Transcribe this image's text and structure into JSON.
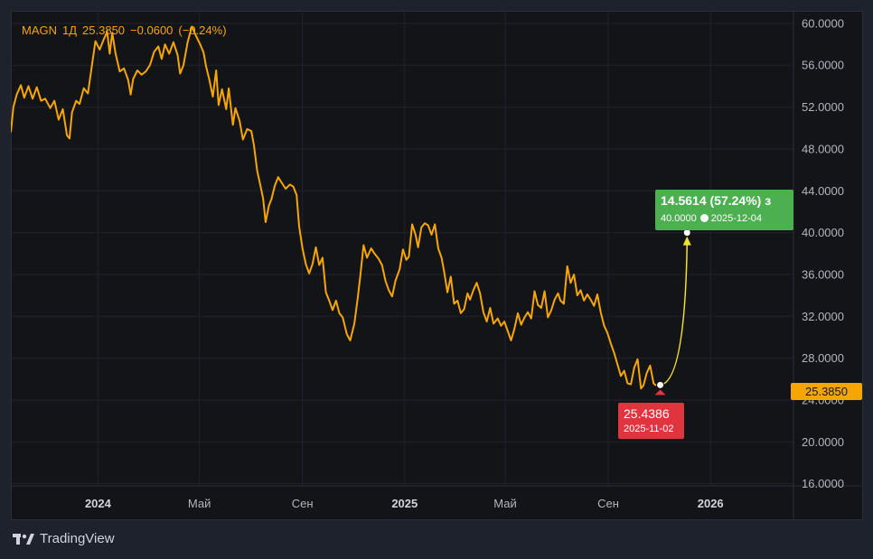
{
  "header": {
    "symbol": "MAGN",
    "interval": "1Д",
    "last": "25.3850",
    "change": "−0.0600",
    "change_pct": "(−0.24%)"
  },
  "price_tag": "25.3850",
  "projection": {
    "gain_label": "14.5614 (57.24%) з",
    "target_label": "40.0000",
    "target_date_label": "2025-12-04",
    "start_label": "25.4386",
    "start_date_label": "2025-11-02"
  },
  "branding": {
    "name": "TradingView"
  },
  "colors": {
    "line": "#f7a600",
    "projection": "#f5e130",
    "gain": "#4caf50",
    "loss": "#e0353f",
    "grid": "#1f232c",
    "axis_text": "#b2b5be",
    "background": "#131418"
  },
  "chart_data": {
    "type": "line",
    "title": "",
    "xlabel": "",
    "ylabel": "",
    "x_ticks": [
      {
        "label": "2024",
        "x": "2024-01-01",
        "bold": true
      },
      {
        "label": "Май",
        "x": "2024-05-01",
        "bold": false
      },
      {
        "label": "Сен",
        "x": "2024-09-01",
        "bold": false
      },
      {
        "label": "2025",
        "x": "2025-01-01",
        "bold": true
      },
      {
        "label": "Май",
        "x": "2025-05-01",
        "bold": false
      },
      {
        "label": "Сен",
        "x": "2025-09-01",
        "bold": false
      },
      {
        "label": "2026",
        "x": "2026-01-01",
        "bold": true
      }
    ],
    "y_ticks": [
      "16.0000",
      "20.0000",
      "24.0000",
      "28.0000",
      "32.0000",
      "36.0000",
      "40.0000",
      "44.0000",
      "48.0000",
      "52.0000",
      "56.0000",
      "60.0000"
    ],
    "ylim": [
      15.8,
      61.2
    ],
    "xlim": [
      "2023-09-19",
      "2026-04-10"
    ],
    "grid": true,
    "series": [
      {
        "color": "#f7a600",
        "points": [
          [
            "2023-09-19",
            49.6
          ],
          [
            "2023-09-22",
            52.0
          ],
          [
            "2023-09-26",
            53.2
          ],
          [
            "2023-10-01",
            54.1
          ],
          [
            "2023-10-05",
            52.9
          ],
          [
            "2023-10-10",
            54.0
          ],
          [
            "2023-10-15",
            52.8
          ],
          [
            "2023-10-20",
            53.9
          ],
          [
            "2023-10-25",
            52.6
          ],
          [
            "2023-10-30",
            52.8
          ],
          [
            "2023-11-05",
            51.9
          ],
          [
            "2023-11-10",
            52.6
          ],
          [
            "2023-11-15",
            50.8
          ],
          [
            "2023-11-20",
            51.8
          ],
          [
            "2023-11-25",
            49.3
          ],
          [
            "2023-11-28",
            49.0
          ],
          [
            "2023-12-01",
            51.5
          ],
          [
            "2023-12-06",
            52.6
          ],
          [
            "2023-12-10",
            52.3
          ],
          [
            "2023-12-15",
            53.8
          ],
          [
            "2023-12-20",
            53.3
          ],
          [
            "2023-12-25",
            56.1
          ],
          [
            "2023-12-29",
            58.3
          ],
          [
            "2024-01-03",
            57.5
          ],
          [
            "2024-01-08",
            58.5
          ],
          [
            "2024-01-12",
            59.2
          ],
          [
            "2024-01-15",
            57.1
          ],
          [
            "2024-01-18",
            59.1
          ],
          [
            "2024-01-22",
            57.1
          ],
          [
            "2024-01-27",
            55.4
          ],
          [
            "2024-02-01",
            55.7
          ],
          [
            "2024-02-06",
            54.6
          ],
          [
            "2024-02-09",
            53.2
          ],
          [
            "2024-02-12",
            54.7
          ],
          [
            "2024-02-17",
            55.5
          ],
          [
            "2024-02-22",
            55.1
          ],
          [
            "2024-02-27",
            55.4
          ],
          [
            "2024-03-03",
            56.0
          ],
          [
            "2024-03-08",
            57.3
          ],
          [
            "2024-03-13",
            57.8
          ],
          [
            "2024-03-17",
            56.6
          ],
          [
            "2024-03-21",
            58.0
          ],
          [
            "2024-03-26",
            57.1
          ],
          [
            "2024-03-31",
            58.2
          ],
          [
            "2024-04-05",
            57.0
          ],
          [
            "2024-04-08",
            55.2
          ],
          [
            "2024-04-12",
            56.0
          ],
          [
            "2024-04-17",
            58.2
          ],
          [
            "2024-04-22",
            59.7
          ],
          [
            "2024-04-27",
            58.8
          ],
          [
            "2024-05-02",
            58.0
          ],
          [
            "2024-05-06",
            57.2
          ],
          [
            "2024-05-09",
            55.9
          ],
          [
            "2024-05-13",
            54.6
          ],
          [
            "2024-05-17",
            53.0
          ],
          [
            "2024-05-21",
            55.5
          ],
          [
            "2024-05-24",
            52.2
          ],
          [
            "2024-05-28",
            53.7
          ],
          [
            "2024-06-02",
            51.8
          ],
          [
            "2024-06-05",
            53.8
          ],
          [
            "2024-06-10",
            50.3
          ],
          [
            "2024-06-13",
            51.9
          ],
          [
            "2024-06-18",
            50.7
          ],
          [
            "2024-06-22",
            48.9
          ],
          [
            "2024-06-27",
            49.9
          ],
          [
            "2024-07-02",
            49.7
          ],
          [
            "2024-07-05",
            48.4
          ],
          [
            "2024-07-09",
            45.9
          ],
          [
            "2024-07-12",
            44.8
          ],
          [
            "2024-07-16",
            43.3
          ],
          [
            "2024-07-19",
            41.0
          ],
          [
            "2024-07-23",
            42.6
          ],
          [
            "2024-07-26",
            43.2
          ],
          [
            "2024-07-30",
            44.5
          ],
          [
            "2024-08-03",
            45.3
          ],
          [
            "2024-08-07",
            44.8
          ],
          [
            "2024-08-12",
            44.2
          ],
          [
            "2024-08-17",
            44.6
          ],
          [
            "2024-08-21",
            44.4
          ],
          [
            "2024-08-25",
            43.6
          ],
          [
            "2024-08-28",
            40.6
          ],
          [
            "2024-09-01",
            38.5
          ],
          [
            "2024-09-05",
            37.0
          ],
          [
            "2024-09-09",
            36.1
          ],
          [
            "2024-09-13",
            37.0
          ],
          [
            "2024-09-17",
            38.6
          ],
          [
            "2024-09-21",
            36.9
          ],
          [
            "2024-09-25",
            37.6
          ],
          [
            "2024-09-29",
            34.3
          ],
          [
            "2024-10-03",
            33.5
          ],
          [
            "2024-10-07",
            32.6
          ],
          [
            "2024-10-11",
            33.5
          ],
          [
            "2024-10-15",
            32.3
          ],
          [
            "2024-10-19",
            31.9
          ],
          [
            "2024-10-24",
            30.3
          ],
          [
            "2024-10-28",
            29.7
          ],
          [
            "2024-11-02",
            31.3
          ],
          [
            "2024-11-06",
            33.8
          ],
          [
            "2024-11-09",
            35.8
          ],
          [
            "2024-11-13",
            38.8
          ],
          [
            "2024-11-17",
            37.6
          ],
          [
            "2024-11-22",
            38.5
          ],
          [
            "2024-11-26",
            38.0
          ],
          [
            "2024-12-01",
            37.5
          ],
          [
            "2024-12-05",
            36.9
          ],
          [
            "2024-12-09",
            35.4
          ],
          [
            "2024-12-13",
            34.5
          ],
          [
            "2024-12-17",
            33.9
          ],
          [
            "2024-12-21",
            35.4
          ],
          [
            "2024-12-26",
            36.5
          ],
          [
            "2024-12-30",
            38.4
          ],
          [
            "2025-01-03",
            37.4
          ],
          [
            "2025-01-06",
            37.7
          ],
          [
            "2025-01-10",
            40.8
          ],
          [
            "2025-01-14",
            39.8
          ],
          [
            "2025-01-17",
            38.6
          ],
          [
            "2025-01-21",
            40.5
          ],
          [
            "2025-01-25",
            40.9
          ],
          [
            "2025-01-29",
            40.7
          ],
          [
            "2025-02-02",
            39.8
          ],
          [
            "2025-02-06",
            40.8
          ],
          [
            "2025-02-10",
            38.5
          ],
          [
            "2025-02-14",
            37.6
          ],
          [
            "2025-02-17",
            36.3
          ],
          [
            "2025-02-21",
            34.3
          ],
          [
            "2025-02-25",
            35.8
          ],
          [
            "2025-03-01",
            33.2
          ],
          [
            "2025-03-05",
            33.5
          ],
          [
            "2025-03-09",
            32.3
          ],
          [
            "2025-03-13",
            32.7
          ],
          [
            "2025-03-17",
            34.2
          ],
          [
            "2025-03-20",
            33.6
          ],
          [
            "2025-03-24",
            34.5
          ],
          [
            "2025-03-28",
            35.2
          ],
          [
            "2025-04-01",
            34.2
          ],
          [
            "2025-04-05",
            32.4
          ],
          [
            "2025-04-09",
            31.5
          ],
          [
            "2025-04-13",
            32.8
          ],
          [
            "2025-04-17",
            31.3
          ],
          [
            "2025-04-22",
            31.8
          ],
          [
            "2025-04-26",
            31.1
          ],
          [
            "2025-04-30",
            31.5
          ],
          [
            "2025-05-04",
            30.6
          ],
          [
            "2025-05-08",
            29.7
          ],
          [
            "2025-05-12",
            30.8
          ],
          [
            "2025-05-16",
            32.3
          ],
          [
            "2025-05-20",
            31.2
          ],
          [
            "2025-05-24",
            31.9
          ],
          [
            "2025-05-28",
            32.4
          ],
          [
            "2025-06-01",
            31.8
          ],
          [
            "2025-06-05",
            34.4
          ],
          [
            "2025-06-09",
            33.1
          ],
          [
            "2025-06-13",
            32.8
          ],
          [
            "2025-06-17",
            34.4
          ],
          [
            "2025-06-21",
            31.9
          ],
          [
            "2025-06-25",
            32.6
          ],
          [
            "2025-06-29",
            33.6
          ],
          [
            "2025-07-03",
            34.2
          ],
          [
            "2025-07-06",
            33.5
          ],
          [
            "2025-07-10",
            33.2
          ],
          [
            "2025-07-14",
            36.8
          ],
          [
            "2025-07-18",
            35.2
          ],
          [
            "2025-07-22",
            36.0
          ],
          [
            "2025-07-26",
            34.0
          ],
          [
            "2025-07-30",
            34.5
          ],
          [
            "2025-08-03",
            33.5
          ],
          [
            "2025-08-07",
            34.1
          ],
          [
            "2025-08-11",
            33.6
          ],
          [
            "2025-08-15",
            33.0
          ],
          [
            "2025-08-19",
            34.1
          ],
          [
            "2025-08-23",
            32.4
          ],
          [
            "2025-08-27",
            31.1
          ],
          [
            "2025-08-31",
            30.4
          ],
          [
            "2025-09-04",
            29.4
          ],
          [
            "2025-09-08",
            28.5
          ],
          [
            "2025-09-12",
            27.4
          ],
          [
            "2025-09-16",
            26.3
          ],
          [
            "2025-09-20",
            26.8
          ],
          [
            "2025-09-24",
            25.6
          ],
          [
            "2025-09-28",
            25.5
          ],
          [
            "2025-10-02",
            27.1
          ],
          [
            "2025-10-06",
            27.9
          ],
          [
            "2025-10-10",
            25.1
          ],
          [
            "2025-10-13",
            25.4
          ],
          [
            "2025-10-17",
            26.6
          ],
          [
            "2025-10-21",
            27.3
          ],
          [
            "2025-10-25",
            25.6
          ],
          [
            "2025-10-28",
            25.385
          ]
        ]
      }
    ],
    "projection": {
      "start": [
        "2025-11-02",
        25.4386
      ],
      "end": [
        "2025-12-04",
        40.0
      ]
    }
  }
}
